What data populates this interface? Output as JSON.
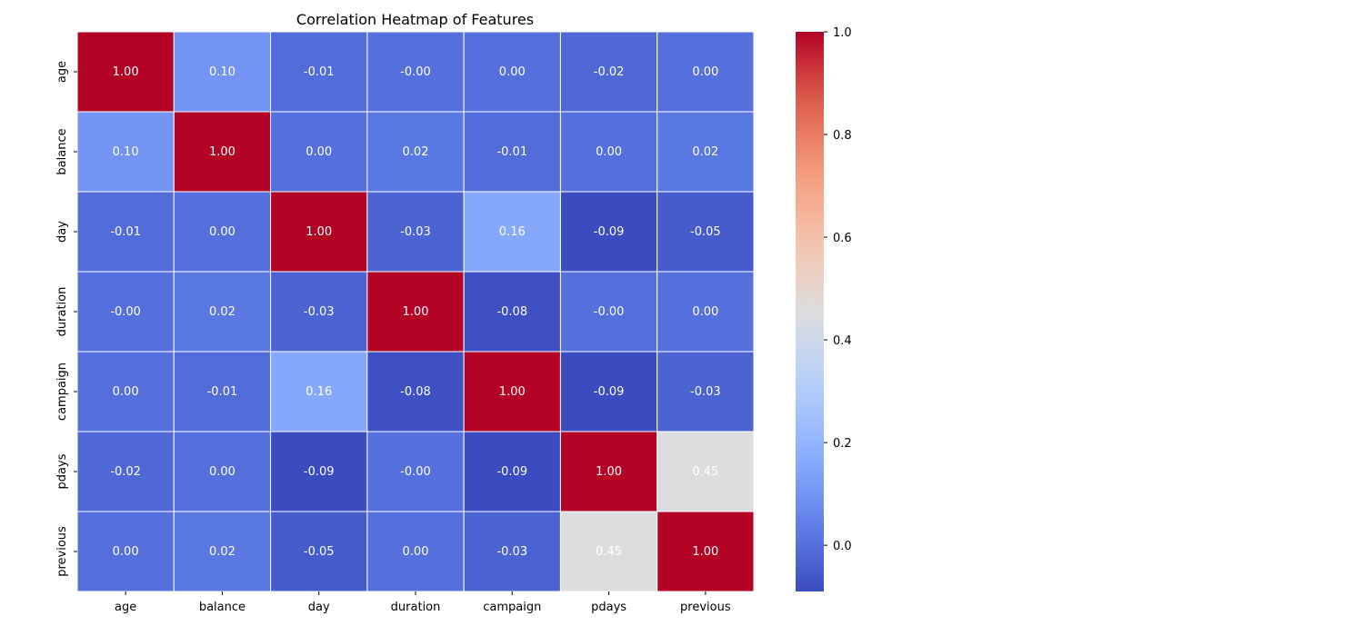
{
  "chart_data": {
    "type": "heatmap",
    "title": "Correlation Heatmap of Features",
    "xlabel": "",
    "ylabel": "",
    "x_labels": [
      "age",
      "balance",
      "day",
      "duration",
      "campaign",
      "pdays",
      "previous"
    ],
    "y_labels": [
      "age",
      "balance",
      "day",
      "duration",
      "campaign",
      "pdays",
      "previous"
    ],
    "values": [
      [
        1.0,
        0.1,
        -0.01,
        -0.0,
        0.0,
        -0.02,
        0.0
      ],
      [
        0.1,
        1.0,
        0.0,
        0.02,
        -0.01,
        0.0,
        0.02
      ],
      [
        -0.01,
        0.0,
        1.0,
        -0.03,
        0.16,
        -0.09,
        -0.05
      ],
      [
        -0.0,
        0.02,
        -0.03,
        1.0,
        -0.08,
        -0.0,
        0.0
      ],
      [
        0.0,
        -0.01,
        0.16,
        -0.08,
        1.0,
        -0.09,
        -0.03
      ],
      [
        -0.02,
        0.0,
        -0.09,
        -0.0,
        -0.09,
        1.0,
        0.45
      ],
      [
        0.0,
        0.02,
        -0.05,
        0.0,
        -0.03,
        0.45,
        1.0
      ]
    ],
    "cell_labels": [
      [
        "1.00",
        "0.10",
        "-0.01",
        "-0.00",
        "0.00",
        "-0.02",
        "0.00"
      ],
      [
        "0.10",
        "1.00",
        "0.00",
        "0.02",
        "-0.01",
        "0.00",
        "0.02"
      ],
      [
        "-0.01",
        "0.00",
        "1.00",
        "-0.03",
        "0.16",
        "-0.09",
        "-0.05"
      ],
      [
        "-0.00",
        "0.02",
        "-0.03",
        "1.00",
        "-0.08",
        "-0.00",
        "0.00"
      ],
      [
        "0.00",
        "-0.01",
        "0.16",
        "-0.08",
        "1.00",
        "-0.09",
        "-0.03"
      ],
      [
        "-0.02",
        "0.00",
        "-0.09",
        "-0.00",
        "-0.09",
        "1.00",
        "0.45"
      ],
      [
        "0.00",
        "0.02",
        "-0.05",
        "0.00",
        "-0.03",
        "0.45",
        "1.00"
      ]
    ],
    "colormap": "coolwarm",
    "vmin": -0.09,
    "vmax": 1.0,
    "colorbar_ticks": [
      0.0,
      0.2,
      0.4,
      0.6,
      0.8,
      1.0
    ],
    "colorbar_tick_labels": [
      "0.0",
      "0.2",
      "0.4",
      "0.6",
      "0.8",
      "1.0"
    ],
    "grid": true,
    "cell_line_color": "#ffffff",
    "text_color": "#ffffff",
    "legend": "colorbar right"
  }
}
